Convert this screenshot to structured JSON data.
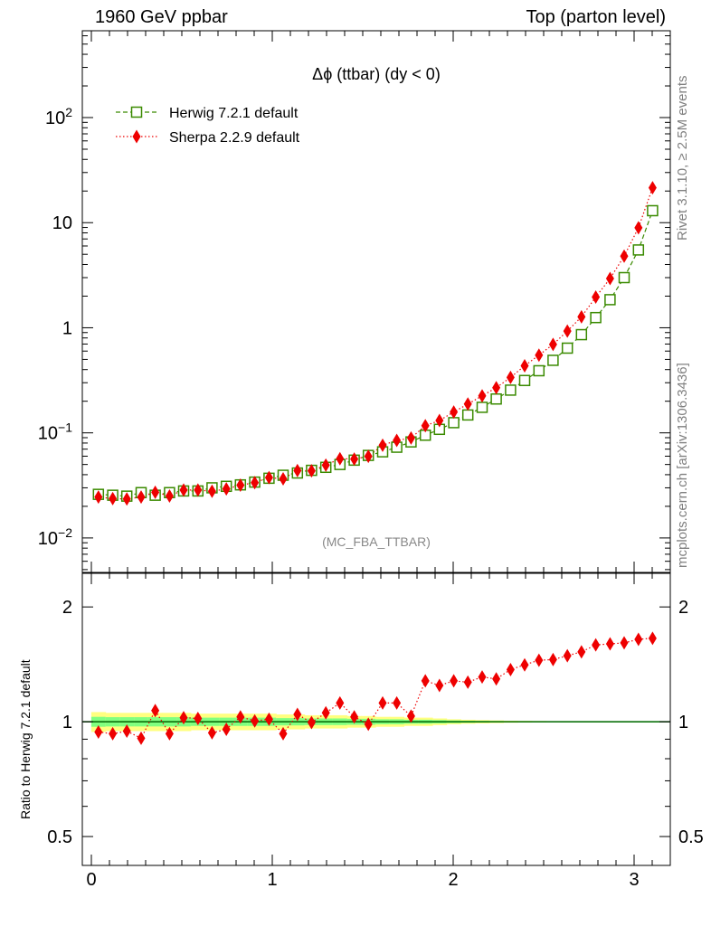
{
  "header": {
    "left": "1960 GeV ppbar",
    "right": "Top (parton level)"
  },
  "side_labels": {
    "rivet": "Rivet 3.1.10, ≥ 2.5M events",
    "mcplots": "mcplots.cern.ch [arXiv:1306.3436]"
  },
  "chart_data": [
    {
      "type": "scatter",
      "panel": "main",
      "title": "Δϕ (ttbar) (dy < 0)",
      "watermark": "(MC_FBA_TTBAR)",
      "xlabel": "",
      "ylabel": "",
      "yscale": "log",
      "xlim": [
        -0.05,
        3.2
      ],
      "ylim": [
        0.0047,
        670
      ],
      "x_ticks": [
        "0",
        "1",
        "2",
        "3"
      ],
      "y_ticks": [
        "10^-2",
        "10^-1",
        "1",
        "10",
        "10^2"
      ],
      "legend_position": "top-left",
      "colors": {
        "herwig": "#3a8a00",
        "sherpa": "#ee0000"
      },
      "x": [
        0.039,
        0.118,
        0.196,
        0.275,
        0.353,
        0.432,
        0.51,
        0.589,
        0.667,
        0.746,
        0.824,
        0.903,
        0.982,
        1.06,
        1.139,
        1.217,
        1.296,
        1.374,
        1.453,
        1.531,
        1.61,
        1.688,
        1.767,
        1.846,
        1.924,
        2.003,
        2.081,
        2.16,
        2.238,
        2.317,
        2.395,
        2.474,
        2.552,
        2.631,
        2.709,
        2.788,
        2.867,
        2.945,
        3.024,
        3.102
      ],
      "series": [
        {
          "name": "Herwig 7.2.1 default",
          "marker": "open-square",
          "line": "dashed",
          "values": [
            0.026,
            0.0255,
            0.025,
            0.027,
            0.0255,
            0.027,
            0.028,
            0.028,
            0.03,
            0.031,
            0.032,
            0.034,
            0.037,
            0.0395,
            0.0415,
            0.044,
            0.047,
            0.05,
            0.055,
            0.061,
            0.066,
            0.073,
            0.082,
            0.095,
            0.108,
            0.125,
            0.148,
            0.175,
            0.21,
            0.255,
            0.315,
            0.39,
            0.49,
            0.64,
            0.86,
            1.25,
            1.85,
            3.0,
            5.5,
            13.0
          ]
        },
        {
          "name": "Sherpa 2.2.9 default",
          "marker": "filled-diamond",
          "line": "dotted",
          "values": [
            0.0245,
            0.0237,
            0.0235,
            0.0245,
            0.0272,
            0.0251,
            0.0286,
            0.0286,
            0.0278,
            0.0293,
            0.0318,
            0.0336,
            0.0375,
            0.0365,
            0.0438,
            0.0436,
            0.0493,
            0.0568,
            0.0563,
            0.0598,
            0.0763,
            0.0847,
            0.0894,
            0.117,
            0.131,
            0.158,
            0.188,
            0.225,
            0.269,
            0.337,
            0.435,
            0.549,
            0.695,
            0.93,
            1.27,
            1.96,
            2.94,
            4.8,
            8.95,
            21.5
          ]
        }
      ]
    },
    {
      "type": "scatter",
      "panel": "ratio",
      "xlabel": "",
      "ylabel": "Ratio to Herwig 7.2.1 default",
      "yscale": "log",
      "xlim": [
        -0.05,
        3.2
      ],
      "ylim": [
        0.42,
        2.45
      ],
      "x_ticks": [
        "0",
        "1",
        "2",
        "3"
      ],
      "y_ticks": [
        "0.5",
        "1",
        "2"
      ],
      "colors": {
        "band_outer": "#ffff80",
        "band_inner": "#80ff80",
        "reference": "#006400",
        "sherpa": "#ee0000"
      },
      "band_outer": [
        0.06,
        0.055,
        0.055,
        0.055,
        0.055,
        0.055,
        0.055,
        0.05,
        0.05,
        0.05,
        0.05,
        0.05,
        0.05,
        0.045,
        0.045,
        0.04,
        0.04,
        0.04,
        0.035,
        0.035,
        0.03,
        0.03,
        0.025,
        0.025,
        0.02,
        0.015,
        0.012,
        0.01,
        0.008,
        0.006,
        0.005,
        0.004,
        0.003,
        0.002,
        0.002,
        0.002,
        0.002,
        0.002,
        0.002,
        0.002
      ],
      "band_inner": [
        0.03,
        0.028,
        0.028,
        0.028,
        0.028,
        0.028,
        0.028,
        0.025,
        0.025,
        0.025,
        0.025,
        0.025,
        0.025,
        0.022,
        0.022,
        0.02,
        0.02,
        0.02,
        0.018,
        0.018,
        0.015,
        0.015,
        0.012,
        0.012,
        0.01,
        0.008,
        0.006,
        0.005,
        0.004,
        0.003,
        0.002,
        0.002,
        0.002,
        0.001,
        0.001,
        0.001,
        0.001,
        0.001,
        0.001,
        0.001
      ],
      "series": [
        {
          "name": "Sherpa 2.2.9 default",
          "marker": "filled-diamond",
          "line": "dotted",
          "values": [
            0.94,
            0.93,
            0.945,
            0.905,
            1.07,
            0.93,
            1.025,
            1.02,
            0.935,
            0.955,
            1.03,
            1.005,
            1.015,
            0.93,
            1.045,
            0.995,
            1.055,
            1.12,
            1.03,
            0.985,
            1.12,
            1.12,
            1.035,
            1.28,
            1.245,
            1.28,
            1.27,
            1.31,
            1.295,
            1.37,
            1.41,
            1.45,
            1.455,
            1.49,
            1.525,
            1.59,
            1.6,
            1.61,
            1.645,
            1.655
          ]
        }
      ]
    }
  ]
}
